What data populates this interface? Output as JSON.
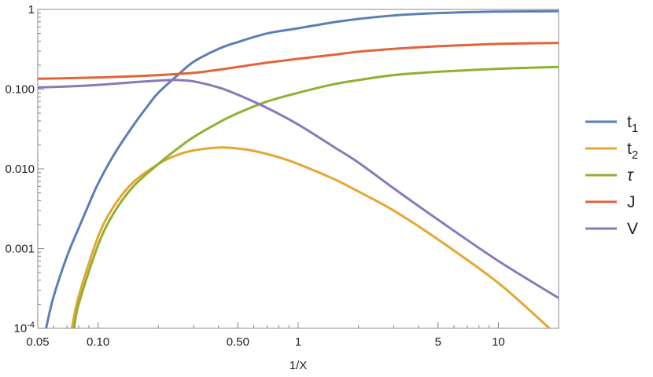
{
  "chart_data": {
    "type": "line",
    "title": "",
    "xlabel": "1/X",
    "ylabel": "",
    "x_scale": "log",
    "y_scale": "log",
    "xlim": [
      0.05,
      20
    ],
    "ylim": [
      0.0001,
      1
    ],
    "grid": false,
    "legend_placement": "right",
    "x_ticks": [
      {
        "value": 0.05,
        "label": "0.05"
      },
      {
        "value": 0.1,
        "label": "0.10"
      },
      {
        "value": 0.5,
        "label": "0.50"
      },
      {
        "value": 1,
        "label": "1"
      },
      {
        "value": 5,
        "label": "5"
      },
      {
        "value": 10,
        "label": "10"
      }
    ],
    "y_ticks": [
      {
        "value": 0.0001,
        "label": "10",
        "sup": "-4"
      },
      {
        "value": 0.001,
        "label": "0.001",
        "sup": ""
      },
      {
        "value": 0.01,
        "label": "0.010",
        "sup": ""
      },
      {
        "value": 0.1,
        "label": "0.100",
        "sup": ""
      },
      {
        "value": 1,
        "label": "1",
        "sup": ""
      }
    ],
    "series": [
      {
        "name": "t",
        "name_sub": "1",
        "color": "#5b7fb5",
        "x": [
          0.055,
          0.06,
          0.07,
          0.08,
          0.09,
          0.1,
          0.12,
          0.15,
          0.18,
          0.2,
          0.25,
          0.3,
          0.4,
          0.5,
          0.7,
          1,
          1.5,
          2,
          3,
          5,
          10,
          20
        ],
        "y": [
          0.0001,
          0.00025,
          0.0008,
          0.0018,
          0.0036,
          0.0065,
          0.015,
          0.035,
          0.065,
          0.09,
          0.15,
          0.22,
          0.32,
          0.39,
          0.5,
          0.58,
          0.69,
          0.76,
          0.84,
          0.9,
          0.94,
          0.95
        ]
      },
      {
        "name": "t",
        "name_sub": "2",
        "color": "#e5a632",
        "x": [
          0.074,
          0.08,
          0.1,
          0.12,
          0.15,
          0.2,
          0.25,
          0.3,
          0.4,
          0.5,
          0.6,
          0.8,
          1,
          1.5,
          2,
          3,
          5,
          10,
          18
        ],
        "y": [
          0.0001,
          0.00025,
          0.0014,
          0.0034,
          0.0068,
          0.0115,
          0.015,
          0.017,
          0.0185,
          0.018,
          0.0168,
          0.014,
          0.0115,
          0.0075,
          0.0052,
          0.003,
          0.0013,
          0.00037,
          0.0001
        ]
      },
      {
        "name": "τ",
        "name_sub": "",
        "color": "#8fb032",
        "x": [
          0.076,
          0.08,
          0.1,
          0.12,
          0.15,
          0.2,
          0.25,
          0.3,
          0.4,
          0.5,
          0.7,
          1,
          1.5,
          2,
          3,
          5,
          10,
          20
        ],
        "y": [
          0.0001,
          0.0002,
          0.0011,
          0.0028,
          0.006,
          0.0115,
          0.018,
          0.025,
          0.038,
          0.05,
          0.07,
          0.09,
          0.115,
          0.13,
          0.15,
          0.165,
          0.18,
          0.19
        ]
      },
      {
        "name": "J",
        "name_sub": "",
        "color": "#e0643a",
        "x": [
          0.05,
          0.07,
          0.1,
          0.15,
          0.2,
          0.3,
          0.4,
          0.5,
          0.7,
          1,
          1.5,
          2,
          3,
          5,
          10,
          20
        ],
        "y": [
          0.135,
          0.137,
          0.14,
          0.145,
          0.15,
          0.16,
          0.175,
          0.19,
          0.215,
          0.24,
          0.27,
          0.295,
          0.32,
          0.345,
          0.37,
          0.38
        ]
      },
      {
        "name": "V",
        "name_sub": "",
        "color": "#8b78b8",
        "x": [
          0.05,
          0.07,
          0.1,
          0.15,
          0.2,
          0.25,
          0.3,
          0.4,
          0.5,
          0.7,
          1,
          1.5,
          2,
          3,
          5,
          10,
          20
        ],
        "y": [
          0.105,
          0.108,
          0.113,
          0.122,
          0.128,
          0.13,
          0.125,
          0.105,
          0.085,
          0.058,
          0.036,
          0.019,
          0.012,
          0.0057,
          0.0023,
          0.0007,
          0.00024
        ]
      }
    ]
  }
}
